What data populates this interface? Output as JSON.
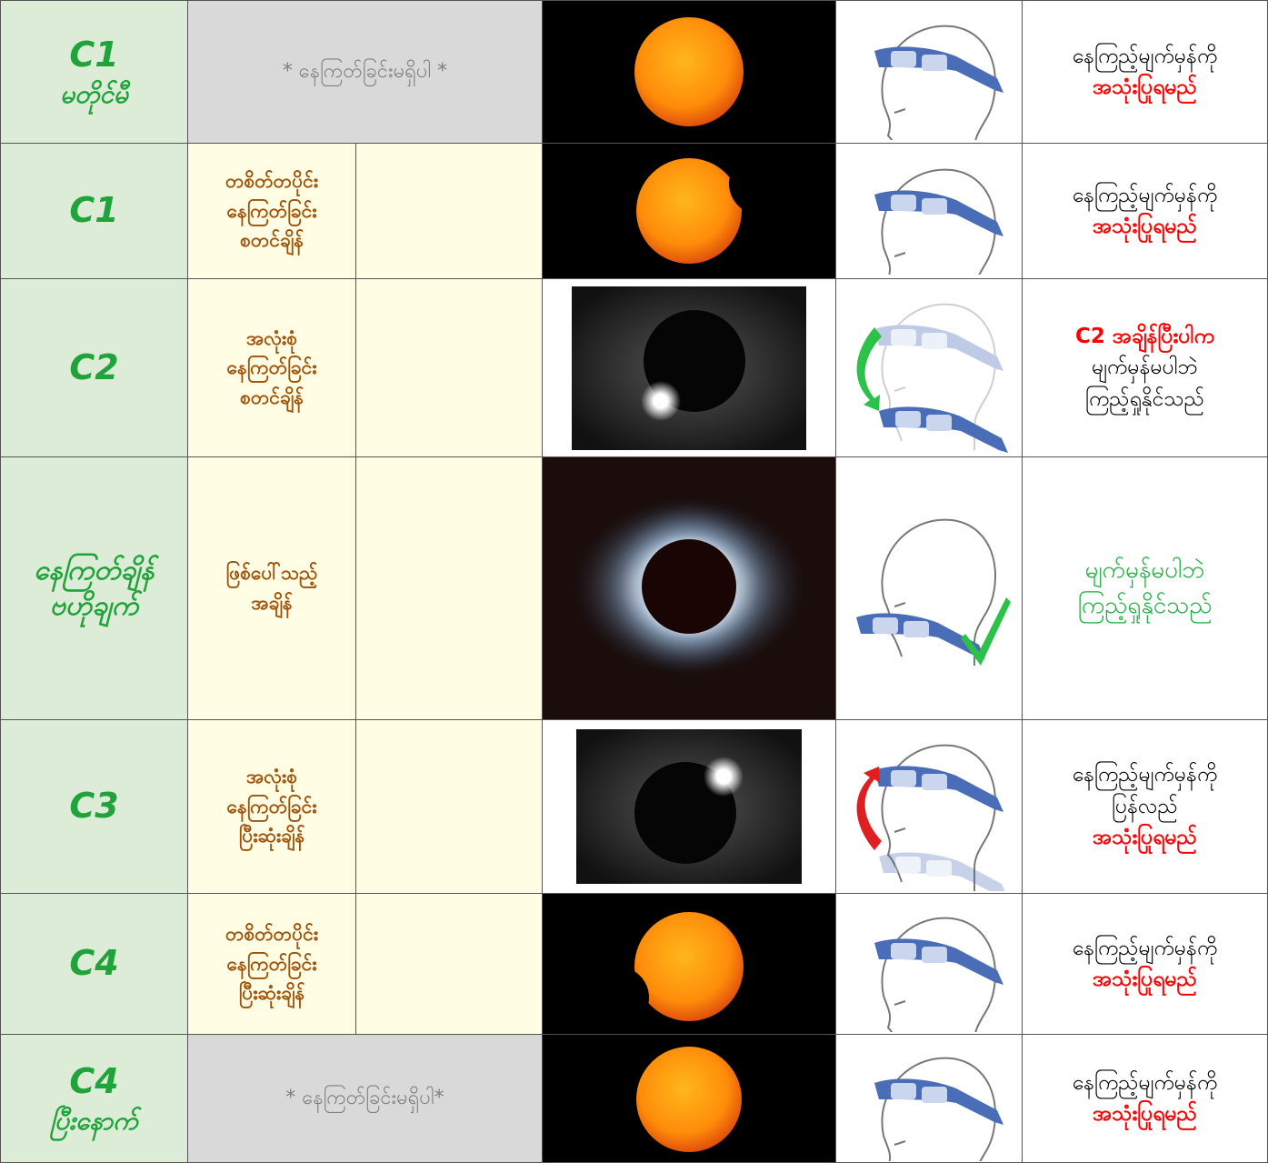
{
  "rows": [
    {
      "stage": [
        "C1",
        "မတိုင်မီ"
      ],
      "description": [
        "* နေကြတ်ခြင်းမရှိပါ *"
      ],
      "instruction": [
        "နေကြည့်မျက်မှန်ကို",
        "အသုံးပြုရမည်"
      ]
    },
    {
      "stage": [
        "C1"
      ],
      "description": [
        "တစိတ်တပိုင်း",
        "နေကြတ်ခြင်း",
        "စတင်ချိန်"
      ],
      "instruction": [
        "နေကြည့်မျက်မှန်ကို",
        "အသုံးပြုရမည်"
      ]
    },
    {
      "stage": [
        "C2"
      ],
      "description": [
        "အလုံးစုံ",
        "နေကြတ်ခြင်း",
        "စတင်ချိန်"
      ],
      "instruction": [
        "C2 အချိန်ပြီးပါက",
        "မျက်မှန်မပါဘဲ",
        "ကြည့်ရှုနိုင်သည်"
      ]
    },
    {
      "stage": [
        "နေကြတ်ချိန်",
        "ဗဟိုချက်"
      ],
      "description": [
        "ဖြစ်ပေါ်သည့်",
        "အချိန်"
      ],
      "instruction": [
        "မျက်မှန်မပါဘဲ",
        "ကြည့်ရှုနိုင်သည်"
      ]
    },
    {
      "stage": [
        "C3"
      ],
      "description": [
        "အလုံးစုံ",
        "နေကြတ်ခြင်း",
        "ပြီးဆုံးချိန်"
      ],
      "instruction": [
        "နေကြည့်မျက်မှန်ကို",
        "ပြန်လည်",
        "အသုံးပြုရမည်"
      ]
    },
    {
      "stage": [
        "C4"
      ],
      "description": [
        "တစိတ်တပိုင်း",
        "နေကြတ်ခြင်း",
        "ပြီးဆုံးချိန်"
      ],
      "instruction": [
        "နေကြည့်မျက်မှန်ကို",
        "အသုံးပြုရမည်"
      ]
    },
    {
      "stage": [
        "C4",
        "ပြီးနောက်"
      ],
      "description": [
        "* နေကြတ်ခြင်းမရှိပါ*"
      ],
      "instruction": [
        "နေကြည့်မျက်မှန်ကို",
        "အသုံးပြုရမည်"
      ]
    }
  ]
}
